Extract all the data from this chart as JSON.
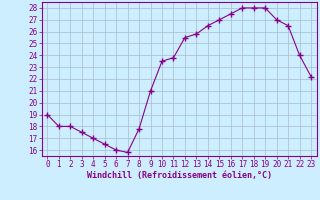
{
  "x": [
    0,
    1,
    2,
    3,
    4,
    5,
    6,
    7,
    8,
    9,
    10,
    11,
    12,
    13,
    14,
    15,
    16,
    17,
    18,
    19,
    20,
    21,
    22,
    23
  ],
  "y": [
    19,
    18,
    18,
    17.5,
    17,
    16.5,
    16,
    15.8,
    17.8,
    21,
    23.5,
    23.8,
    25.5,
    25.8,
    26.5,
    27,
    27.5,
    28,
    28,
    28,
    27,
    26.5,
    24,
    22.2
  ],
  "line_color": "#880088",
  "marker": "+",
  "marker_size": 4,
  "background_color": "#cceeff",
  "grid_color": "#aabbcc",
  "xlabel": "Windchill (Refroidissement éolien,°C)",
  "xlabel_color": "#880088",
  "tick_color": "#880088",
  "ylim": [
    15.5,
    28.5
  ],
  "xlim": [
    -0.5,
    23.5
  ],
  "yticks": [
    16,
    17,
    18,
    19,
    20,
    21,
    22,
    23,
    24,
    25,
    26,
    27,
    28
  ],
  "xticks": [
    0,
    1,
    2,
    3,
    4,
    5,
    6,
    7,
    8,
    9,
    10,
    11,
    12,
    13,
    14,
    15,
    16,
    17,
    18,
    19,
    20,
    21,
    22,
    23
  ]
}
